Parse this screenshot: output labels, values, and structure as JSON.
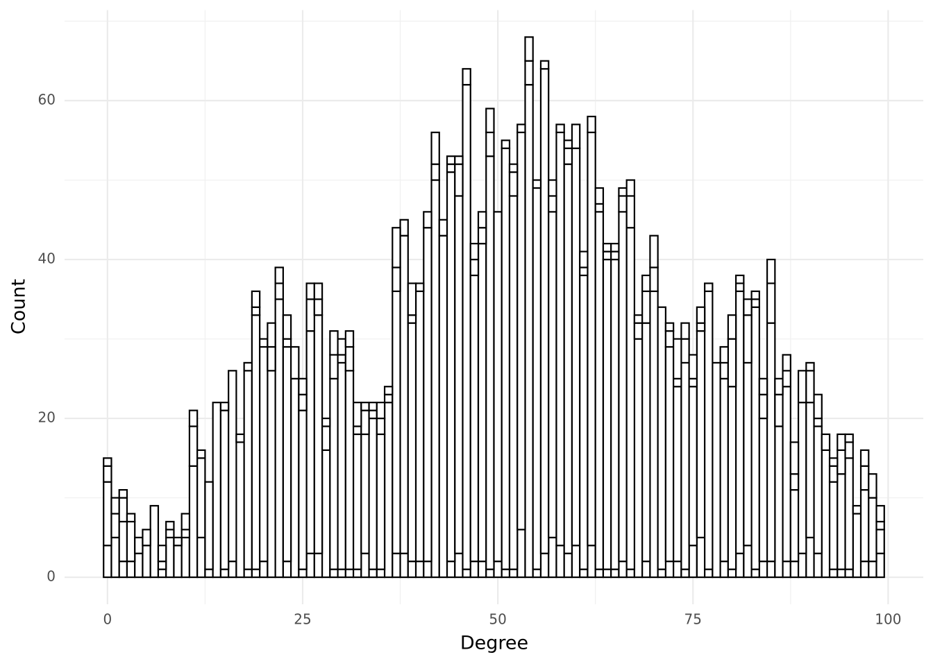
{
  "chart_data": {
    "type": "histogram",
    "x_label": "Degree",
    "y_label": "Count",
    "bins": [
      -0.5,
      0.5,
      1.5,
      2.5,
      3.5,
      4.5,
      5.5,
      6.5,
      7.5,
      8.5,
      9.5,
      10.5,
      11.5,
      12.5,
      13.5,
      14.5,
      15.5,
      16.5,
      17.5,
      18.5,
      19.5,
      20.5,
      21.5,
      22.5,
      23.5,
      24.5,
      25.5,
      26.5,
      27.5,
      28.5,
      29.5,
      30.5,
      31.5,
      32.5,
      33.5,
      34.5,
      35.5,
      36.5,
      37.5,
      38.5,
      39.5,
      40.5,
      41.5,
      42.5,
      43.5,
      44.5,
      45.5,
      46.5,
      47.5,
      48.5,
      49.5,
      50.5,
      51.5,
      52.5,
      53.5,
      54.5,
      55.5,
      56.5,
      57.5,
      58.5,
      59.5,
      60.5,
      61.5,
      62.5,
      63.5,
      64.5,
      65.5,
      66.5,
      67.5,
      68.5,
      69.5,
      70.5,
      71.5,
      72.5,
      73.5,
      74.5,
      75.5,
      76.5,
      77.5,
      78.5,
      79.5,
      80.5,
      81.5,
      82.5,
      83.5,
      84.5,
      85.5,
      86.5,
      87.5,
      88.5,
      89.5,
      90.5,
      91.5,
      92.5,
      93.5,
      94.5,
      95.5,
      96.5,
      97.5,
      98.5,
      99.5
    ],
    "series": [
      {
        "color": "#ffffff",
        "values": [
          4,
          5,
          2,
          2,
          3,
          4,
          9,
          1,
          5,
          4,
          5,
          14,
          5,
          1,
          22,
          1,
          2,
          17,
          1,
          1,
          2,
          26,
          35,
          2,
          25,
          1,
          3,
          3,
          16,
          1,
          1,
          1,
          1,
          3,
          1,
          1,
          22,
          3,
          3,
          2,
          2,
          2,
          50,
          43,
          2,
          3,
          1,
          2,
          2,
          1,
          2,
          1,
          1,
          6,
          62,
          1,
          3,
          5,
          4,
          3,
          4,
          1,
          4,
          1,
          1,
          1,
          2,
          1,
          30,
          2,
          36,
          1,
          2,
          2,
          1,
          4,
          5,
          1,
          27,
          2,
          1,
          3,
          4,
          1,
          2,
          2,
          19,
          2,
          2,
          3,
          5,
          3,
          16,
          1,
          1,
          1,
          8,
          2,
          2,
          3
        ]
      },
      {
        "color": "#ffffff",
        "values": [
          8,
          3,
          5,
          5,
          2,
          2,
          0,
          1,
          1,
          1,
          1,
          5,
          10,
          11,
          0,
          20,
          24,
          1,
          25,
          32,
          27,
          3,
          2,
          27,
          4,
          20,
          28,
          30,
          3,
          24,
          26,
          25,
          17,
          15,
          19,
          17,
          1,
          33,
          40,
          30,
          34,
          42,
          2,
          2,
          49,
          45,
          61,
          36,
          40,
          52,
          44,
          53,
          47,
          50,
          3,
          48,
          61,
          41,
          52,
          49,
          50,
          37,
          52,
          45,
          39,
          39,
          44,
          43,
          2,
          30,
          3,
          33,
          27,
          22,
          26,
          20,
          26,
          35,
          0,
          23,
          23,
          33,
          23,
          33,
          18,
          30,
          4,
          22,
          9,
          19,
          17,
          16,
          2,
          11,
          12,
          14,
          1,
          9,
          8,
          3
        ]
      },
      {
        "color": "#ffffff",
        "values": [
          2,
          2,
          3,
          1,
          0,
          0,
          0,
          2,
          1,
          0,
          2,
          2,
          1,
          0,
          0,
          1,
          0,
          0,
          1,
          1,
          1,
          3,
          2,
          1,
          0,
          2,
          4,
          2,
          1,
          3,
          1,
          3,
          1,
          3,
          1,
          2,
          1,
          3,
          2,
          1,
          1,
          2,
          4,
          0,
          1,
          4,
          2,
          2,
          2,
          3,
          0,
          1,
          3,
          1,
          3,
          1,
          1,
          2,
          1,
          2,
          3,
          1,
          2,
          1,
          1,
          1,
          2,
          4,
          1,
          4,
          4,
          0,
          2,
          1,
          3,
          1,
          1,
          1,
          0,
          2,
          6,
          1,
          6,
          1,
          3,
          5,
          2,
          2,
          2,
          4,
          4,
          1,
          0,
          2,
          3,
          2,
          0,
          3,
          3,
          1
        ]
      },
      {
        "color": "#ffffff",
        "values": [
          1,
          0,
          1,
          0,
          0,
          0,
          0,
          0,
          0,
          0,
          0,
          0,
          0,
          0,
          0,
          0,
          0,
          0,
          0,
          2,
          0,
          0,
          0,
          3,
          0,
          2,
          2,
          2,
          0,
          3,
          2,
          2,
          3,
          1,
          1,
          2,
          0,
          5,
          0,
          4,
          0,
          0,
          0,
          0,
          1,
          1,
          0,
          2,
          2,
          3,
          0,
          0,
          1,
          0,
          0,
          0,
          0,
          2,
          0,
          1,
          0,
          2,
          0,
          2,
          1,
          1,
          1,
          2,
          0,
          2,
          0,
          0,
          1,
          5,
          2,
          3,
          2,
          0,
          0,
          2,
          3,
          1,
          2,
          1,
          2,
          3,
          0,
          2,
          4,
          0,
          1,
          3,
          0,
          1,
          2,
          1,
          0,
          2,
          0,
          2
        ]
      }
    ],
    "xlim": [
      -5.5,
      104.5
    ],
    "ylim": [
      -3.4,
      71.4
    ],
    "xticks": [
      0,
      25,
      50,
      75,
      100
    ],
    "yticks": [
      0,
      20,
      40,
      60
    ],
    "grid": true
  }
}
